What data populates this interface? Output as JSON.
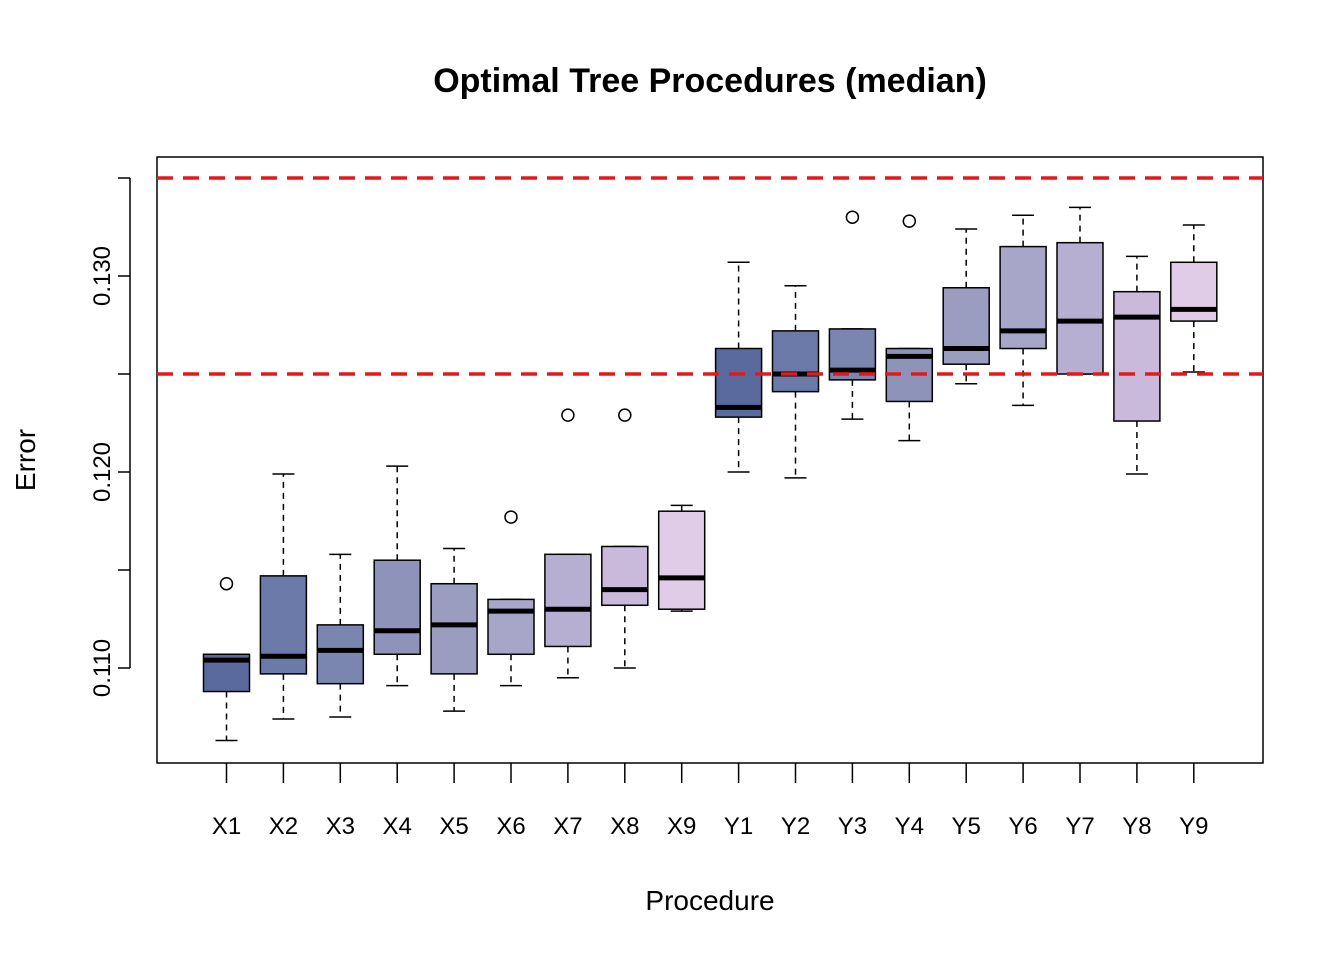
{
  "chart_data": {
    "type": "boxplot",
    "title": "Optimal Tree Procedures (median)",
    "xlabel": "Procedure",
    "ylabel": "Error",
    "ylim": [
      0.105,
      0.136
    ],
    "y_ticks": [
      0.11,
      0.115,
      0.12,
      0.125,
      0.13,
      0.135
    ],
    "y_tick_labels": [
      "0.110",
      "",
      "0.120",
      "",
      "0.130",
      ""
    ],
    "reference_lines": [
      0.125,
      0.135
    ],
    "reference_line_color": "#e31a1c",
    "categories": [
      "X1",
      "X2",
      "X3",
      "X4",
      "X5",
      "X6",
      "X7",
      "X8",
      "X9",
      "Y1",
      "Y2",
      "Y3",
      "Y4",
      "Y5",
      "Y6",
      "Y7",
      "Y8",
      "Y9"
    ],
    "boxes": [
      {
        "name": "X1",
        "whisker_low": 0.1063,
        "q1": 0.1088,
        "median": 0.1104,
        "q3": 0.1107,
        "whisker_high": 0.1107,
        "outliers": [
          0.1143
        ],
        "color": "#5b6a9e"
      },
      {
        "name": "X2",
        "whisker_low": 0.1074,
        "q1": 0.1097,
        "median": 0.1106,
        "q3": 0.1147,
        "whisker_high": 0.1199,
        "outliers": [],
        "color": "#6b7aa8"
      },
      {
        "name": "X3",
        "whisker_low": 0.1075,
        "q1": 0.1092,
        "median": 0.1109,
        "q3": 0.1122,
        "whisker_high": 0.1158,
        "outliers": [],
        "color": "#7b86b0"
      },
      {
        "name": "X4",
        "whisker_low": 0.1091,
        "q1": 0.1107,
        "median": 0.1119,
        "q3": 0.1155,
        "whisker_high": 0.1203,
        "outliers": [],
        "color": "#8e93b9"
      },
      {
        "name": "X5",
        "whisker_low": 0.1078,
        "q1": 0.1097,
        "median": 0.1122,
        "q3": 0.1143,
        "whisker_high": 0.1161,
        "outliers": [],
        "color": "#9a9cc0"
      },
      {
        "name": "X6",
        "whisker_low": 0.1091,
        "q1": 0.1107,
        "median": 0.1129,
        "q3": 0.1135,
        "whisker_high": 0.1135,
        "outliers": [
          0.1177
        ],
        "color": "#a7a6c9"
      },
      {
        "name": "X7",
        "whisker_low": 0.1095,
        "q1": 0.1111,
        "median": 0.113,
        "q3": 0.1158,
        "whisker_high": 0.1158,
        "outliers": [
          0.1229
        ],
        "color": "#b7afd2"
      },
      {
        "name": "X8",
        "whisker_low": 0.11,
        "q1": 0.1132,
        "median": 0.114,
        "q3": 0.1162,
        "whisker_high": 0.1162,
        "outliers": [
          0.1229
        ],
        "color": "#c9badb"
      },
      {
        "name": "X9",
        "whisker_low": 0.1129,
        "q1": 0.113,
        "median": 0.1146,
        "q3": 0.118,
        "whisker_high": 0.1183,
        "outliers": [],
        "color": "#e0cce6"
      },
      {
        "name": "Y1",
        "whisker_low": 0.12,
        "q1": 0.1228,
        "median": 0.1233,
        "q3": 0.1263,
        "whisker_high": 0.1307,
        "outliers": [],
        "color": "#5b6a9e"
      },
      {
        "name": "Y2",
        "whisker_low": 0.1197,
        "q1": 0.1241,
        "median": 0.125,
        "q3": 0.1272,
        "whisker_high": 0.1295,
        "outliers": [],
        "color": "#6b7aa8"
      },
      {
        "name": "Y3",
        "whisker_low": 0.1227,
        "q1": 0.1247,
        "median": 0.1252,
        "q3": 0.1273,
        "whisker_high": 0.1273,
        "outliers": [
          0.133
        ],
        "color": "#7b86b0"
      },
      {
        "name": "Y4",
        "whisker_low": 0.1216,
        "q1": 0.1236,
        "median": 0.1259,
        "q3": 0.1263,
        "whisker_high": 0.1263,
        "outliers": [
          0.1328
        ],
        "color": "#8e93b9"
      },
      {
        "name": "Y5",
        "whisker_low": 0.1245,
        "q1": 0.1255,
        "median": 0.1263,
        "q3": 0.1294,
        "whisker_high": 0.1324,
        "outliers": [],
        "color": "#9a9cc0"
      },
      {
        "name": "Y6",
        "whisker_low": 0.1234,
        "q1": 0.1263,
        "median": 0.1272,
        "q3": 0.1315,
        "whisker_high": 0.1331,
        "outliers": [],
        "color": "#a7a6c9"
      },
      {
        "name": "Y7",
        "whisker_low": 0.125,
        "q1": 0.125,
        "median": 0.1277,
        "q3": 0.1317,
        "whisker_high": 0.1335,
        "outliers": [],
        "color": "#b7afd2"
      },
      {
        "name": "Y8",
        "whisker_low": 0.1199,
        "q1": 0.1226,
        "median": 0.1279,
        "q3": 0.1292,
        "whisker_high": 0.131,
        "outliers": [],
        "color": "#c9badb"
      },
      {
        "name": "Y9",
        "whisker_low": 0.1251,
        "q1": 0.1277,
        "median": 0.1283,
        "q3": 0.1307,
        "whisker_high": 0.1326,
        "outliers": [],
        "color": "#e0cce6"
      }
    ]
  }
}
